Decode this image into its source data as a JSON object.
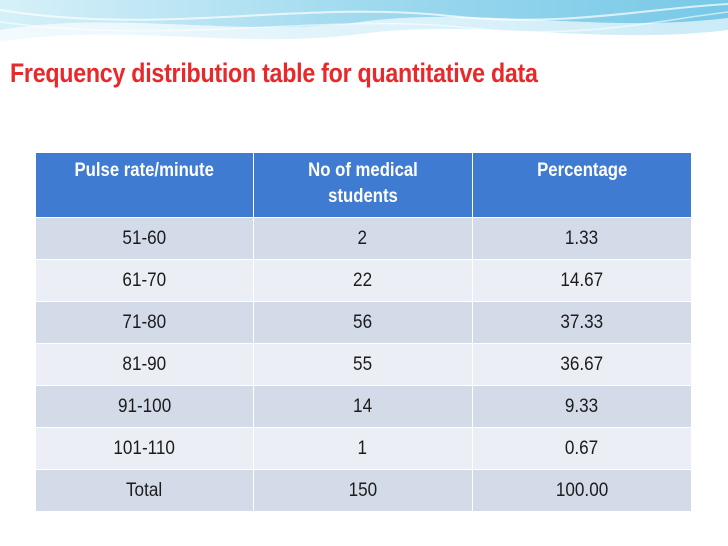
{
  "slide": {
    "title": "Frequency distribution table for quantitative  data"
  },
  "table": {
    "headers": [
      "Pulse rate/minute",
      "No of medical students",
      "Percentage"
    ],
    "rows": [
      [
        "51-60",
        "2",
        "1.33"
      ],
      [
        "61-70",
        "22",
        "14.67"
      ],
      [
        "71-80",
        "56",
        "37.33"
      ],
      [
        "81-90",
        "55",
        "36.67"
      ],
      [
        "91-100",
        "14",
        "9.33"
      ],
      [
        "101-110",
        "1",
        "0.67"
      ],
      [
        "Total",
        "150",
        "100.00"
      ]
    ]
  },
  "colors": {
    "title": "#e8282b",
    "header_bg": "#3f7bd0",
    "row_odd": "#d3dbe9",
    "row_even": "#ebeff5"
  }
}
